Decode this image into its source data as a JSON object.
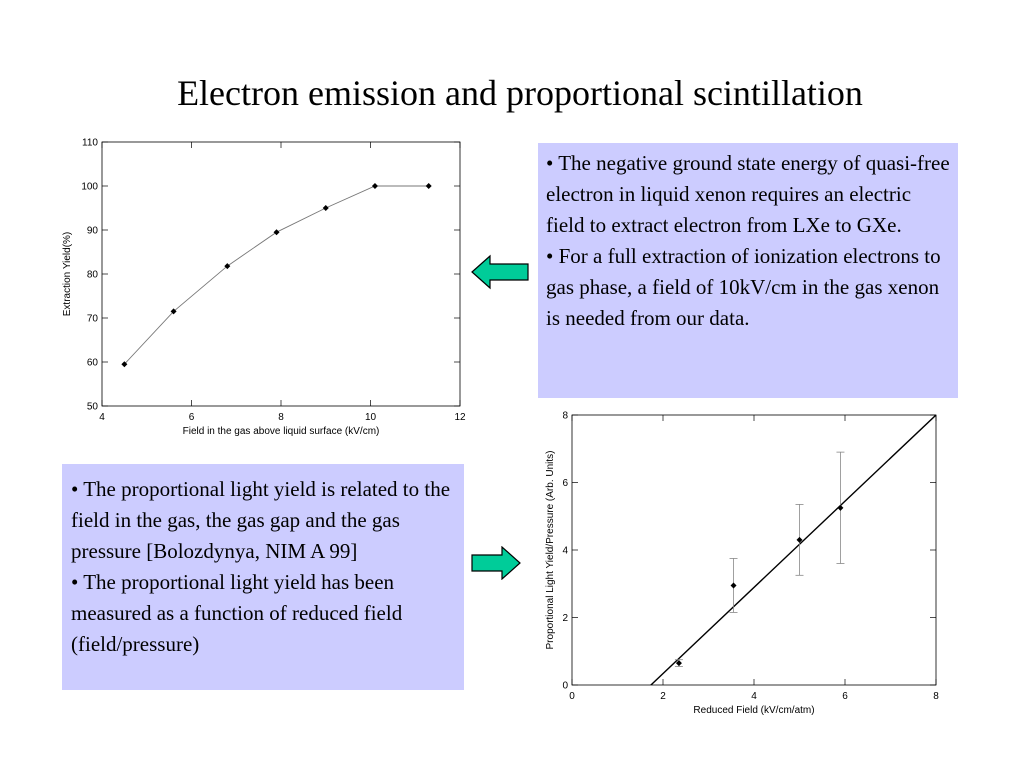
{
  "slide": {
    "title": "Electron emission and proportional scintillation"
  },
  "text_box_top": {
    "bullets": [
      "• The negative ground state energy of quasi-free electron in liquid xenon requires an electric field to extract electron from LXe to GXe.",
      "• For a full extraction of ionization electrons to gas phase, a field of 10kV/cm in the gas xenon is needed from our data."
    ]
  },
  "text_box_bottom": {
    "bullets": [
      "• The proportional light yield is related to the field in the gas, the gas gap and the gas pressure [Bolozdynya, NIM A 99]",
      "• The proportional light yield has been measured as a function of reduced field (field/pressure)"
    ]
  },
  "arrows": {
    "top": {
      "direction": "left",
      "color": "#00cc99"
    },
    "bottom": {
      "direction": "right",
      "color": "#00cc99"
    }
  },
  "chart_data": [
    {
      "type": "line",
      "xlabel": "Field in the gas above liquid surface (kV/cm)",
      "ylabel": "Extraction Yield(%)",
      "xlim": [
        4,
        12
      ],
      "ylim": [
        50,
        110
      ],
      "xticks": [
        4,
        6,
        8,
        10,
        12
      ],
      "yticks": [
        50,
        60,
        70,
        80,
        90,
        100,
        110
      ],
      "grid": false,
      "series": [
        {
          "x": [
            4.5,
            5.6,
            6.8,
            7.9,
            9.0,
            10.1,
            11.3
          ],
          "y": [
            59.5,
            71.5,
            81.8,
            89.5,
            95.0,
            100.0,
            100.0
          ]
        }
      ]
    },
    {
      "type": "scatter",
      "xlabel": "Reduced Field (kV/cm/atm)",
      "ylabel": "Proportional Light Yield/Pressure (Arb. Units)",
      "xlim": [
        0,
        8
      ],
      "ylim": [
        0,
        8
      ],
      "xticks": [
        0,
        2,
        4,
        6,
        8
      ],
      "yticks": [
        0,
        2,
        4,
        6,
        8
      ],
      "grid": false,
      "points": [
        {
          "x": 2.35,
          "y": 0.65,
          "err": 0.1
        },
        {
          "x": 3.55,
          "y": 2.95,
          "err": 0.8
        },
        {
          "x": 5.0,
          "y": 4.3,
          "err": 1.05
        },
        {
          "x": 5.9,
          "y": 5.25,
          "err": 1.65
        }
      ],
      "fit_line": {
        "x": [
          1.5,
          8.0
        ],
        "y": [
          -0.3,
          8.0
        ]
      }
    }
  ]
}
